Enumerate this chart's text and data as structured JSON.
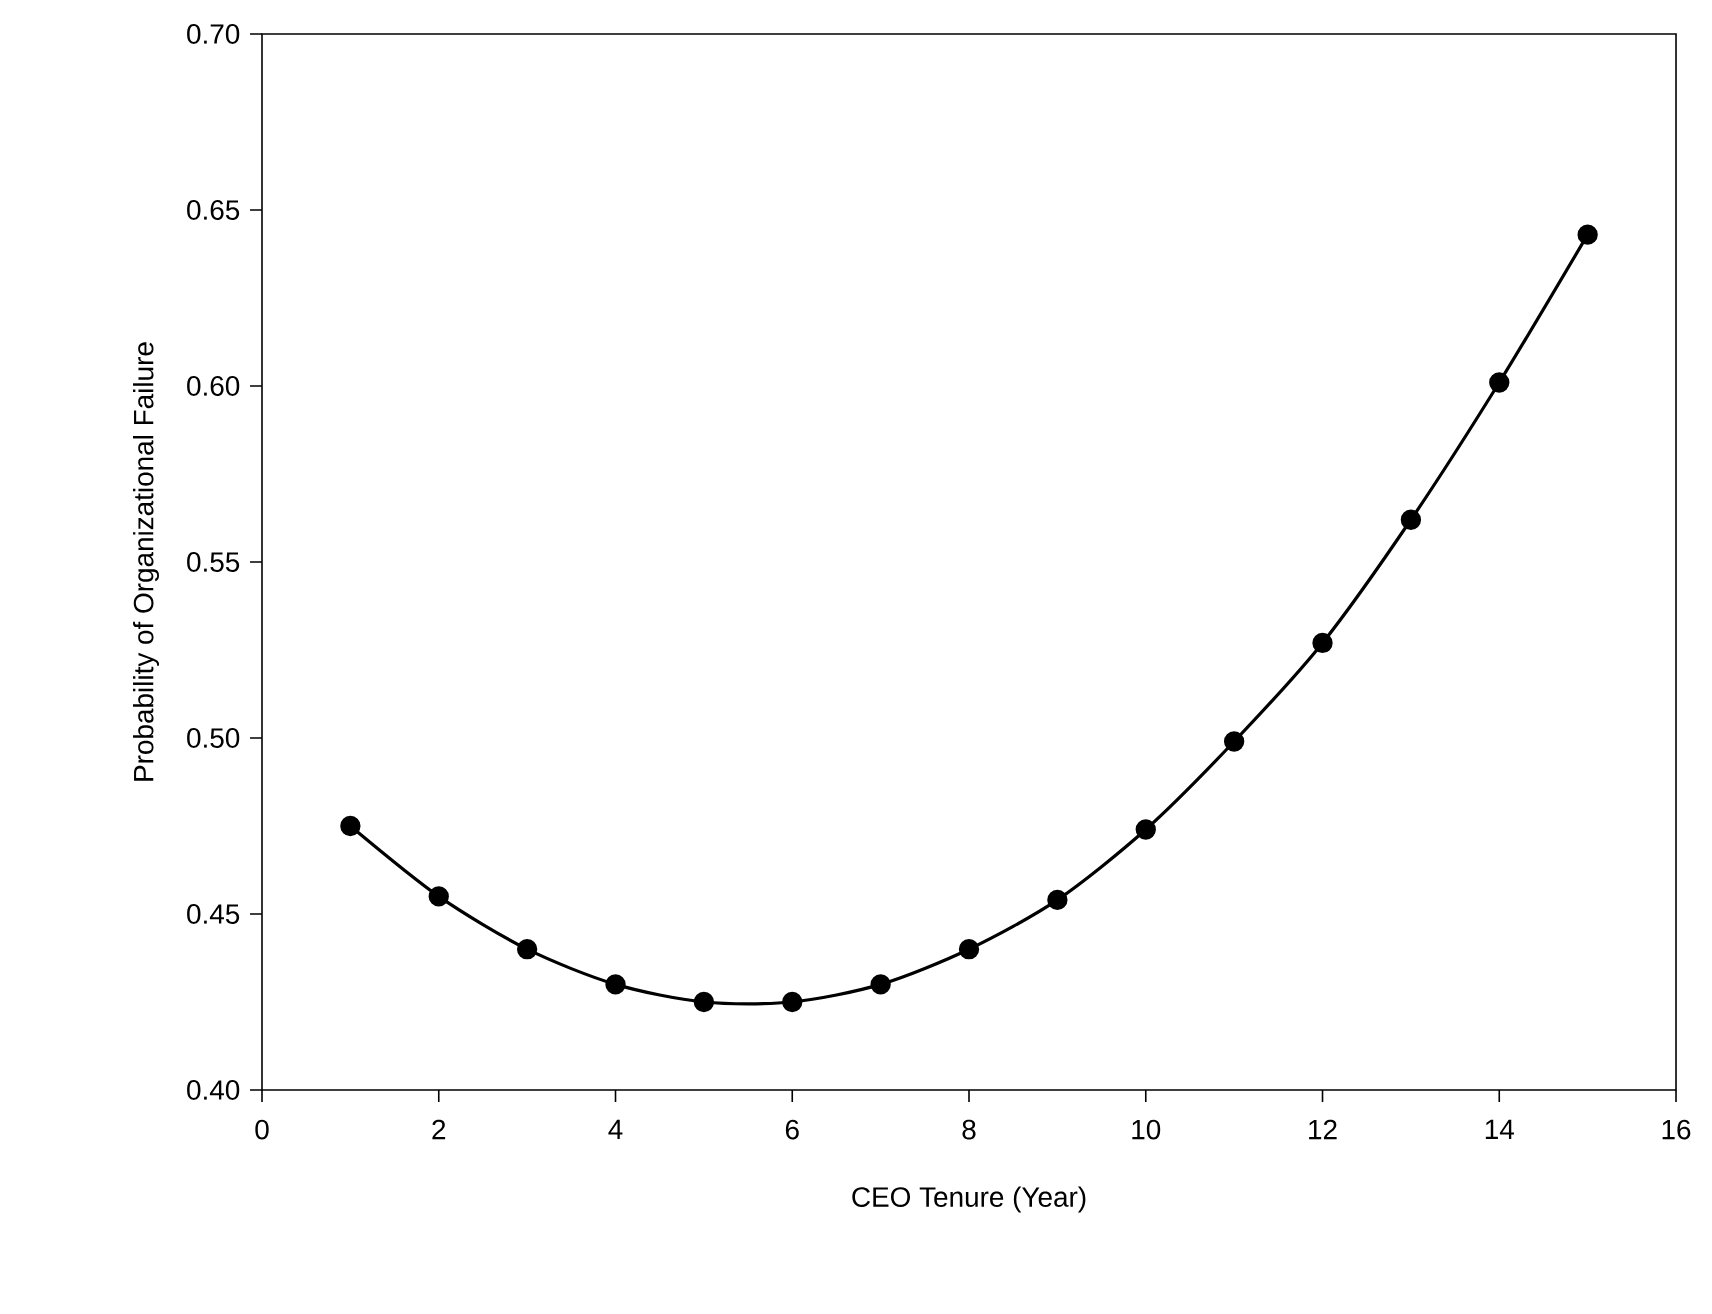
{
  "chart_data": {
    "type": "line",
    "xlabel": "CEO Tenure (Year)",
    "ylabel": "Probability of Organizational Failure",
    "x": [
      1,
      2,
      3,
      4,
      5,
      6,
      7,
      8,
      9,
      10,
      11,
      12,
      13,
      14,
      15
    ],
    "series": [
      {
        "color": "#000000",
        "values": [
          0.475,
          0.455,
          0.44,
          0.43,
          0.425,
          0.425,
          0.43,
          0.44,
          0.454,
          0.474,
          0.499,
          0.527,
          0.562,
          0.601,
          0.643
        ]
      }
    ],
    "xlim": [
      0,
      16
    ],
    "xticks": [
      0,
      2,
      4,
      6,
      8,
      10,
      12,
      14,
      16
    ],
    "ylim": [
      0.4,
      0.7
    ],
    "yticks": [
      {
        "value": 0.4,
        "label": "0.40"
      },
      {
        "value": 0.45,
        "label": "0.45"
      },
      {
        "value": 0.5,
        "label": "0.50"
      },
      {
        "value": 0.55,
        "label": "0.55"
      },
      {
        "value": 0.6,
        "label": "0.60"
      },
      {
        "value": 0.65,
        "label": "0.65"
      },
      {
        "value": 0.7,
        "label": "0.70"
      }
    ],
    "marker": "circle",
    "line_style": "solid",
    "grid": false
  }
}
